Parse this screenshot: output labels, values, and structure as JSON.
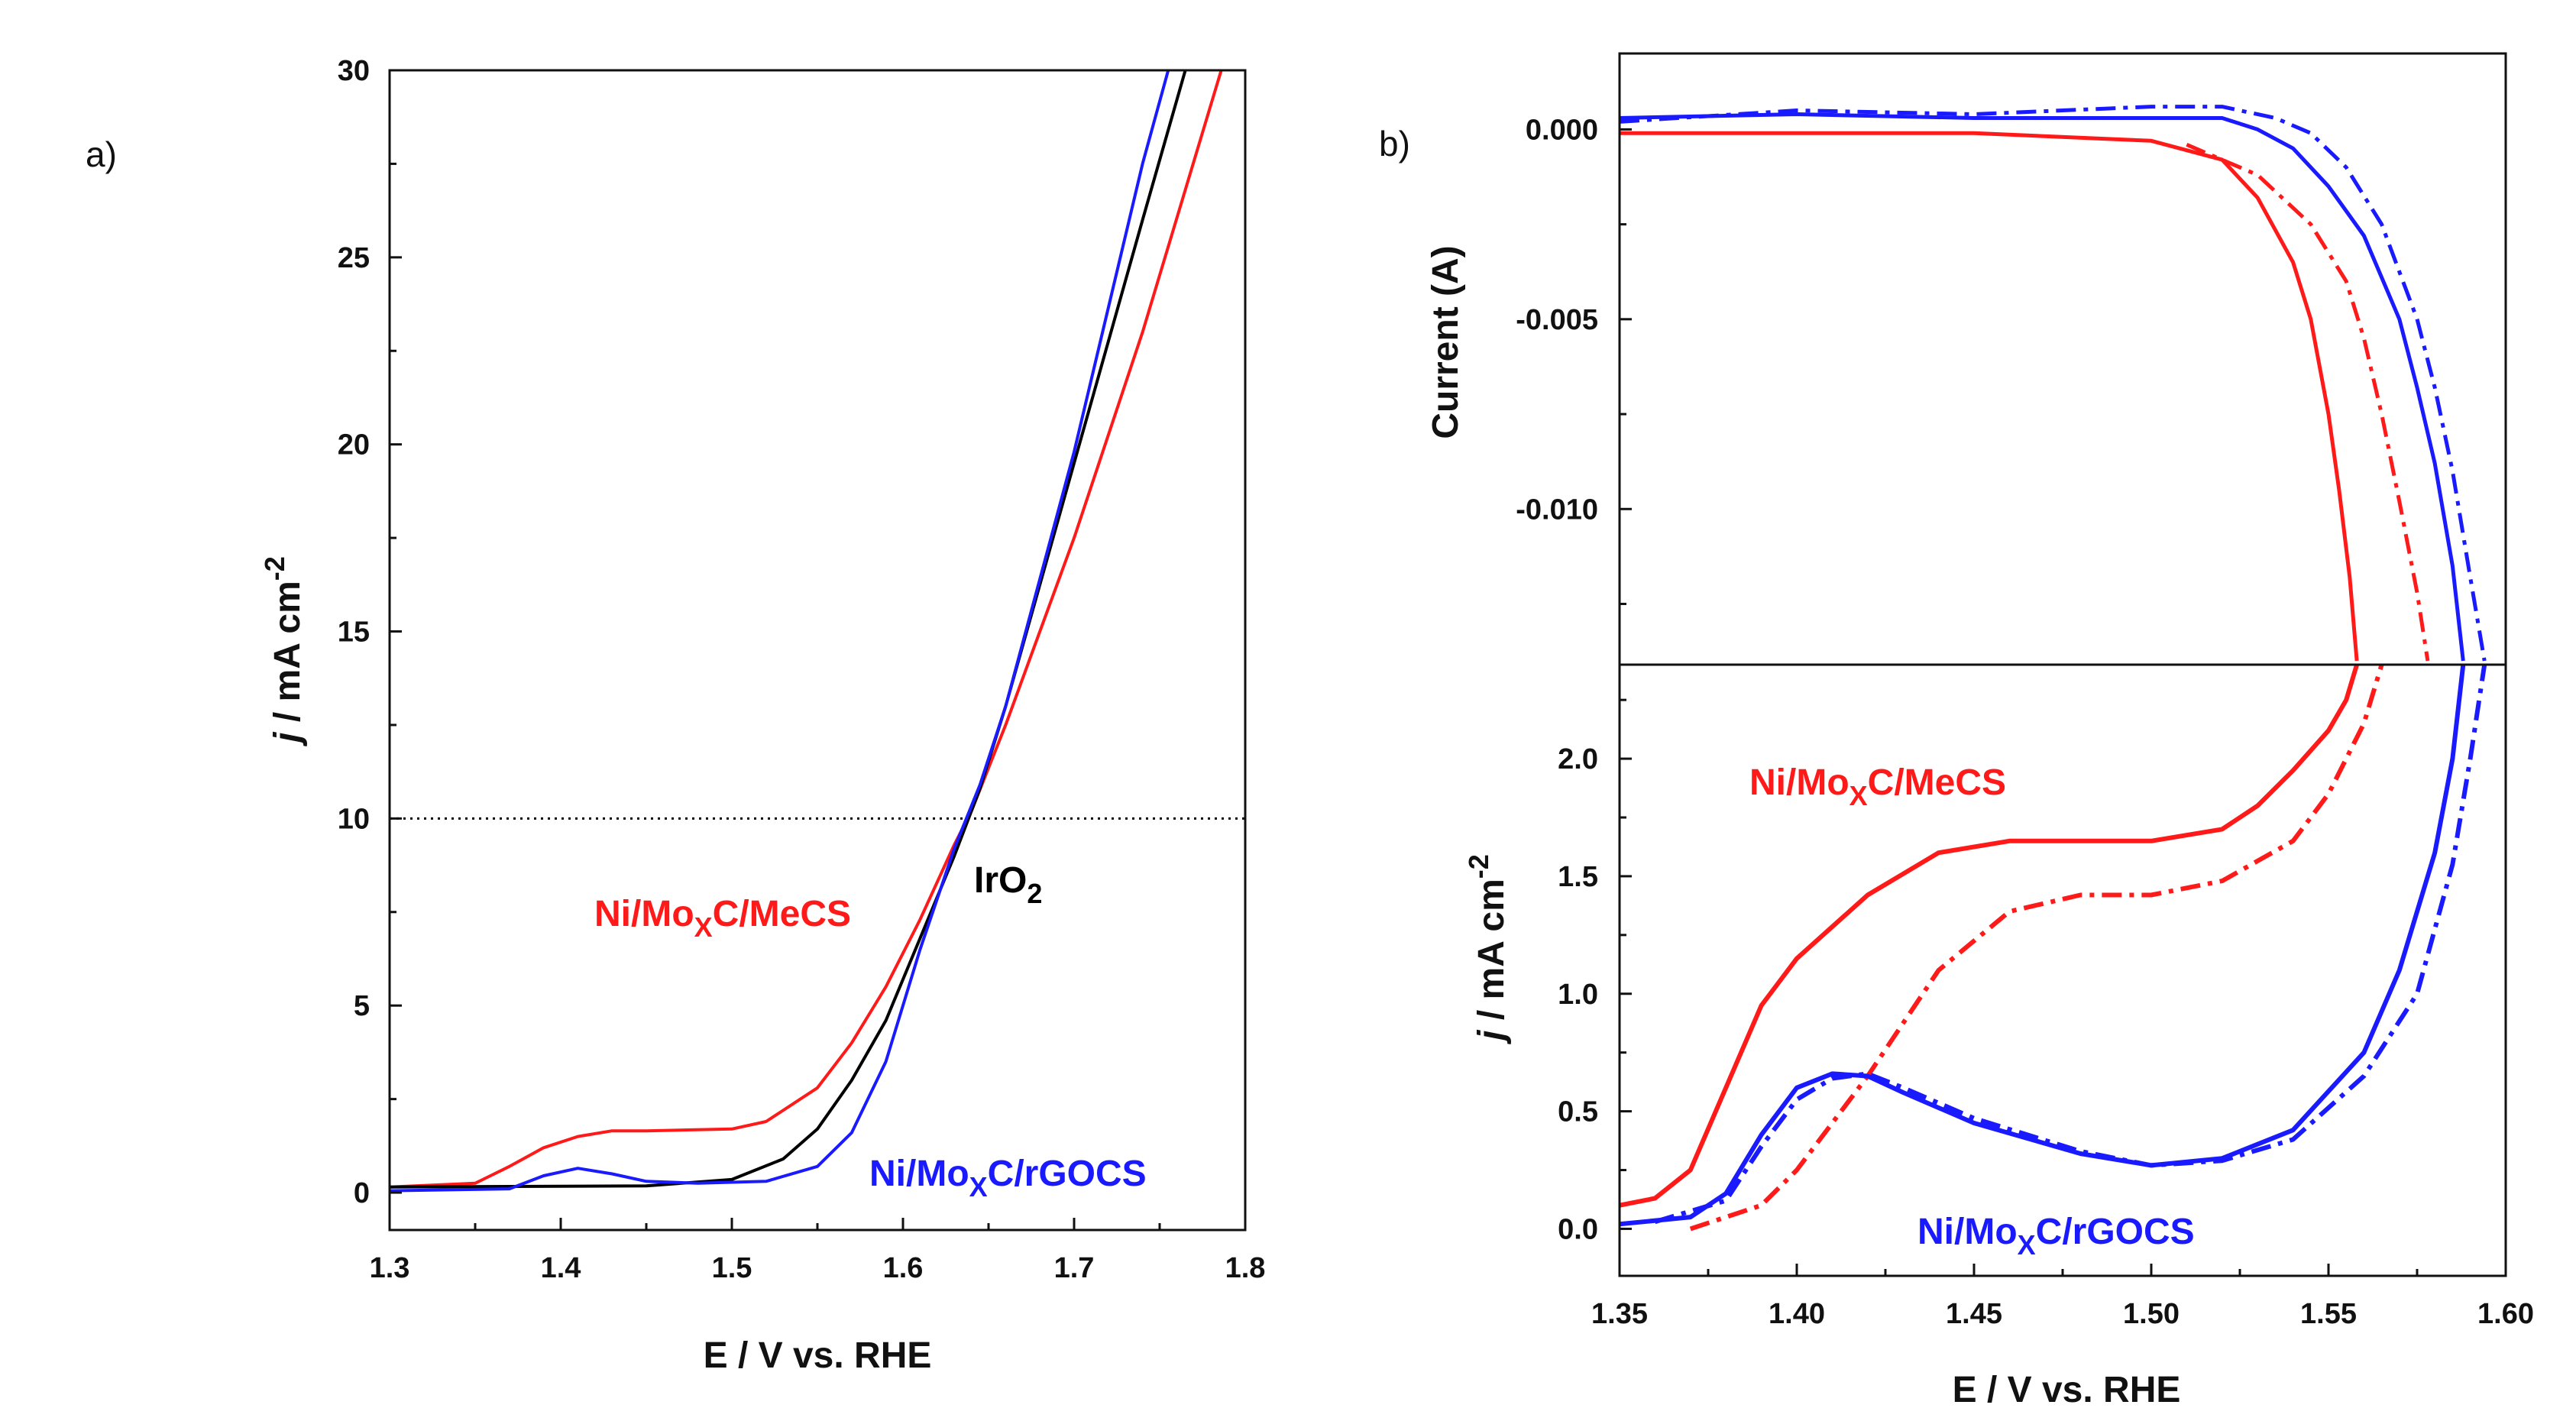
{
  "colors": {
    "red": "#ff1a1a",
    "blue": "#1a1aff",
    "black": "#000000",
    "axis": "#111111"
  },
  "chart_data": [
    {
      "panel": "a)",
      "type": "line",
      "xlabel": "E / V vs. RHE",
      "ylabel": {
        "italic": "j",
        "main": " / mA cm",
        "sup": "-2"
      },
      "xlim": [
        1.3,
        1.8
      ],
      "ylim": [
        -1,
        30
      ],
      "xticks": [
        1.3,
        1.4,
        1.5,
        1.6,
        1.7,
        1.8
      ],
      "xtick_labels": [
        "1.3",
        "1.4",
        "1.5",
        "1.6",
        "1.7",
        "1.8"
      ],
      "yticks": [
        0,
        5,
        10,
        15,
        20,
        25,
        30
      ],
      "ytick_labels": [
        "0",
        "5",
        "10",
        "15",
        "20",
        "25",
        "30"
      ],
      "reference_line": {
        "y": 10,
        "style": "dotted"
      },
      "annotations": [
        {
          "text": "IrO",
          "sub": "2",
          "color": "black"
        },
        {
          "text": "Ni/Mo",
          "sub": "X",
          "suffix": "C/MeCS",
          "color": "red"
        },
        {
          "text": "Ni/Mo",
          "sub": "X",
          "suffix": "C/rGOCS",
          "color": "blue"
        }
      ],
      "series": [
        {
          "name": "Ni/MoXC/MeCS",
          "color": "red",
          "x": [
            1.3,
            1.35,
            1.37,
            1.39,
            1.41,
            1.43,
            1.45,
            1.5,
            1.52,
            1.55,
            1.57,
            1.59,
            1.61,
            1.63,
            1.64,
            1.66,
            1.7,
            1.74,
            1.786
          ],
          "y": [
            0.15,
            0.25,
            0.7,
            1.2,
            1.5,
            1.65,
            1.65,
            1.7,
            1.9,
            2.8,
            4.0,
            5.5,
            7.3,
            9.3,
            10.2,
            12.5,
            17.5,
            23.0,
            30.0
          ]
        },
        {
          "name": "IrO2",
          "color": "black",
          "x": [
            1.3,
            1.45,
            1.5,
            1.53,
            1.55,
            1.57,
            1.59,
            1.61,
            1.63,
            1.645,
            1.66,
            1.7,
            1.74,
            1.765
          ],
          "y": [
            0.15,
            0.18,
            0.35,
            0.9,
            1.7,
            3.0,
            4.6,
            6.8,
            9.0,
            10.8,
            13.0,
            19.5,
            26.0,
            30.0
          ]
        },
        {
          "name": "Ni/MoXC/rGOCS",
          "color": "blue",
          "x": [
            1.3,
            1.37,
            1.39,
            1.41,
            1.43,
            1.45,
            1.48,
            1.52,
            1.55,
            1.57,
            1.59,
            1.61,
            1.63,
            1.645,
            1.66,
            1.7,
            1.74,
            1.755
          ],
          "y": [
            0.05,
            0.1,
            0.45,
            0.65,
            0.5,
            0.3,
            0.25,
            0.3,
            0.7,
            1.6,
            3.5,
            6.5,
            9.2,
            10.9,
            13.0,
            19.8,
            27.5,
            30.0
          ]
        }
      ]
    },
    {
      "panel": "b)",
      "type": "line",
      "xlabel": "E / V vs. RHE",
      "xlim": [
        1.35,
        1.6
      ],
      "xticks": [
        1.35,
        1.4,
        1.45,
        1.5,
        1.55,
        1.6
      ],
      "xtick_labels": [
        "1.35",
        "1.40",
        "1.45",
        "1.50",
        "1.55",
        "1.60"
      ],
      "top": {
        "ylabel": "Current (A)",
        "ylim": [
          -0.0141,
          0.002
        ],
        "yticks": [
          0.0,
          -0.005,
          -0.01
        ],
        "ytick_labels": [
          "0.000",
          "-0.005",
          "-0.010"
        ],
        "series": [
          {
            "name": "Ni/MoXC/MeCS",
            "color": "red",
            "style": "solid",
            "x": [
              1.35,
              1.45,
              1.5,
              1.52,
              1.53,
              1.54,
              1.545,
              1.55,
              1.553,
              1.556,
              1.558
            ],
            "y": [
              -0.0001,
              -0.0001,
              -0.0003,
              -0.0008,
              -0.0018,
              -0.0035,
              -0.005,
              -0.0075,
              -0.0095,
              -0.0118,
              -0.014
            ]
          },
          {
            "name": "Ni/MoXC/MeCS",
            "color": "red",
            "style": "dashdot",
            "x": [
              1.51,
              1.53,
              1.545,
              1.555,
              1.56,
              1.565,
              1.57,
              1.575,
              1.578
            ],
            "y": [
              -0.0004,
              -0.0012,
              -0.0025,
              -0.004,
              -0.0055,
              -0.0075,
              -0.0098,
              -0.0122,
              -0.014
            ]
          },
          {
            "name": "Ni/MoXC/rGOCS",
            "color": "blue",
            "style": "solid",
            "x": [
              1.35,
              1.4,
              1.45,
              1.5,
              1.52,
              1.53,
              1.54,
              1.55,
              1.56,
              1.57,
              1.575,
              1.58,
              1.585,
              1.588
            ],
            "y": [
              0.0003,
              0.0004,
              0.0003,
              0.0003,
              0.0003,
              0.0,
              -0.0005,
              -0.0015,
              -0.0028,
              -0.005,
              -0.0068,
              -0.0088,
              -0.0115,
              -0.014
            ]
          },
          {
            "name": "Ni/MoXC/rGOCS",
            "color": "blue",
            "style": "dashdot",
            "x": [
              1.35,
              1.4,
              1.45,
              1.5,
              1.52,
              1.535,
              1.545,
              1.555,
              1.565,
              1.575,
              1.58,
              1.585,
              1.59,
              1.594
            ],
            "y": [
              0.0002,
              0.0005,
              0.0004,
              0.0006,
              0.0006,
              0.0003,
              -0.0001,
              -0.001,
              -0.0025,
              -0.005,
              -0.0068,
              -0.009,
              -0.0118,
              -0.014
            ]
          }
        ]
      },
      "bottom": {
        "ylabel": {
          "italic": "j",
          "main": " / mA cm",
          "sup": "-2"
        },
        "ylim": [
          -0.2,
          2.4
        ],
        "yticks": [
          0.0,
          0.5,
          1.0,
          1.5,
          2.0
        ],
        "ytick_labels": [
          "0.0",
          "0.5",
          "1.0",
          "1.5",
          "2.0"
        ],
        "annotations": [
          {
            "text": "Ni/Mo",
            "sub": "X",
            "suffix": "C/MeCS",
            "color": "red"
          },
          {
            "text": "Ni/Mo",
            "sub": "X",
            "suffix": "C/rGOCS",
            "color": "blue"
          }
        ],
        "series": [
          {
            "name": "Ni/MoXC/MeCS",
            "color": "red",
            "style": "solid",
            "x": [
              1.35,
              1.36,
              1.37,
              1.38,
              1.39,
              1.4,
              1.42,
              1.44,
              1.46,
              1.48,
              1.5,
              1.52,
              1.53,
              1.54,
              1.55,
              1.555,
              1.558
            ],
            "y": [
              0.1,
              0.13,
              0.25,
              0.6,
              0.95,
              1.15,
              1.42,
              1.6,
              1.65,
              1.65,
              1.65,
              1.7,
              1.8,
              1.95,
              2.12,
              2.25,
              2.4
            ]
          },
          {
            "name": "Ni/MoXC/MeCS",
            "color": "red",
            "style": "dashdot",
            "x": [
              1.37,
              1.39,
              1.4,
              1.42,
              1.44,
              1.46,
              1.48,
              1.5,
              1.52,
              1.54,
              1.55,
              1.56,
              1.565
            ],
            "y": [
              0.0,
              0.1,
              0.25,
              0.65,
              1.1,
              1.35,
              1.42,
              1.42,
              1.48,
              1.65,
              1.85,
              2.15,
              2.4
            ]
          },
          {
            "name": "Ni/MoXC/rGOCS",
            "color": "blue",
            "style": "solid",
            "x": [
              1.35,
              1.37,
              1.38,
              1.39,
              1.4,
              1.41,
              1.42,
              1.43,
              1.45,
              1.48,
              1.5,
              1.52,
              1.54,
              1.56,
              1.57,
              1.58,
              1.585,
              1.588
            ],
            "y": [
              0.02,
              0.05,
              0.15,
              0.4,
              0.6,
              0.66,
              0.65,
              0.58,
              0.45,
              0.32,
              0.27,
              0.3,
              0.42,
              0.75,
              1.1,
              1.6,
              2.0,
              2.4
            ]
          },
          {
            "name": "Ni/MoXC/rGOCS",
            "color": "blue",
            "style": "dashdot",
            "x": [
              1.36,
              1.38,
              1.39,
              1.4,
              1.41,
              1.42,
              1.43,
              1.45,
              1.48,
              1.5,
              1.52,
              1.54,
              1.56,
              1.575,
              1.585,
              1.59,
              1.594
            ],
            "y": [
              0.03,
              0.12,
              0.35,
              0.55,
              0.64,
              0.66,
              0.6,
              0.47,
              0.33,
              0.27,
              0.29,
              0.38,
              0.65,
              1.0,
              1.55,
              2.0,
              2.4
            ]
          }
        ]
      }
    }
  ]
}
